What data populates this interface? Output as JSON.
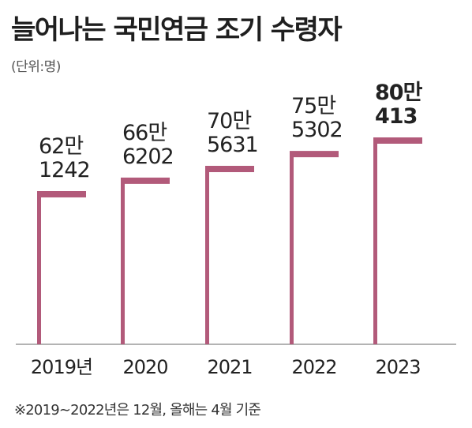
{
  "title": "늘어나는 국민연금 조기 수령자",
  "unit": "(단위:명)",
  "footnote": "※2019~2022년은 12월, 올해는 4월 기준",
  "colors": {
    "bar": "#b25a7a",
    "baseline": "#9a9a9a"
  },
  "chart_data": {
    "type": "bar",
    "title": "늘어나는 국민연금 조기 수령자",
    "unit": "(단위:명)",
    "categories": [
      "2019년",
      "2020",
      "2021",
      "2022",
      "2023"
    ],
    "values": [
      621242,
      666202,
      705631,
      755302,
      800413
    ],
    "labels": [
      [
        "62만",
        "1242"
      ],
      [
        "66만",
        "6202"
      ],
      [
        "70만",
        "5631"
      ],
      [
        "75만",
        "5302"
      ],
      [
        "80만",
        "413"
      ]
    ],
    "highlight_index": 4,
    "grid": false,
    "legend": "none"
  }
}
